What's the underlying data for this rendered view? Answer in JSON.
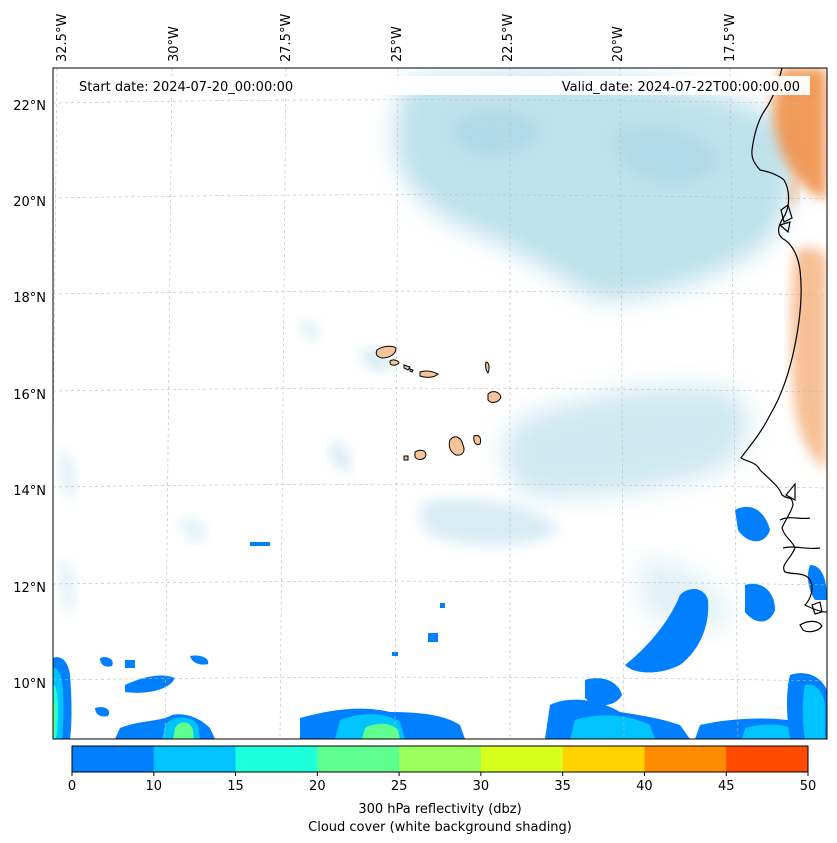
{
  "map": {
    "start_date": "Start date: 2024-07-20_00:00:00",
    "valid_date": "Valid_date: 2024-07-22T00:00:00.00",
    "lon_labels": [
      "32.5°W",
      "30°W",
      "27.5°W",
      "25°W",
      "22.5°W",
      "20°W",
      "17.5°W"
    ],
    "lat_labels": [
      "22°N",
      "20°N",
      "18°N",
      "16°N",
      "14°N",
      "12°N",
      "10°N"
    ],
    "colors": {
      "cloud": "#a9d7e6",
      "land": "#f5c49b",
      "coast": "#000000",
      "warm_anomaly": "#f08a3e"
    }
  },
  "colorbar": {
    "ticks": [
      "0",
      "10",
      "15",
      "20",
      "25",
      "30",
      "35",
      "40",
      "45",
      "50"
    ],
    "colors": [
      "#0080ff",
      "#00c3ff",
      "#1effdc",
      "#5fff8e",
      "#9bff5c",
      "#d6ff1c",
      "#ffd300",
      "#ff8c00",
      "#ff4a00"
    ],
    "label_line1": "300 hPa reflectivity (dbz)",
    "label_line2": "Cloud cover (white background shading)"
  }
}
